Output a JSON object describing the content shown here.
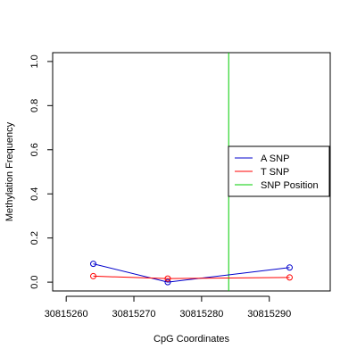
{
  "chart_data": {
    "type": "line",
    "xlabel": "CpG Coordinates",
    "ylabel": "Methylation Frequency",
    "xlim": [
      30815258,
      30815299
    ],
    "ylim": [
      -0.04,
      1.04
    ],
    "x_ticks": [
      30815260,
      30815270,
      30815280,
      30815290
    ],
    "y_ticks": [
      0.0,
      0.2,
      0.4,
      0.6,
      0.8,
      1.0
    ],
    "x_tick_labels": [
      "30815260",
      "30815270",
      "30815280",
      "30815290"
    ],
    "y_tick_labels": [
      "0.0",
      "0.2",
      "0.4",
      "0.6",
      "0.8",
      "1.0"
    ],
    "series": [
      {
        "name": "A SNP",
        "color": "#0000cc",
        "x": [
          30815264,
          30815275,
          30815293
        ],
        "y": [
          0.083,
          0.0,
          0.066
        ]
      },
      {
        "name": "T SNP",
        "color": "#ff0000",
        "x": [
          30815264,
          30815275,
          30815293
        ],
        "y": [
          0.027,
          0.016,
          0.021
        ]
      }
    ],
    "snp_position": {
      "name": "SNP Position",
      "color": "#00cc00",
      "x": 30815284
    },
    "legend": {
      "placement": "right",
      "entries": [
        "A SNP",
        "T SNP",
        "SNP Position"
      ]
    },
    "grid": false
  }
}
